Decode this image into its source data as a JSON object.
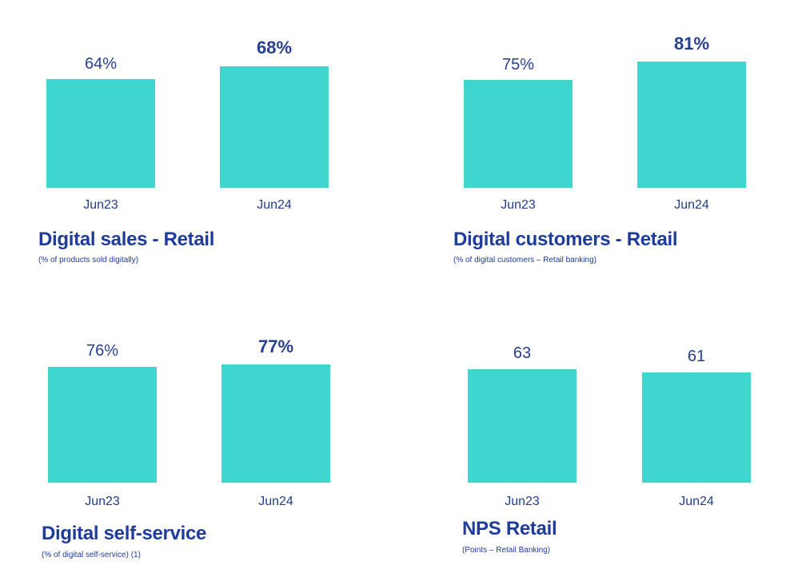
{
  "chart_data": [
    {
      "type": "bar",
      "title": "Digital sales - Retail",
      "subtitle": "(% of products sold digitally)",
      "categories": [
        "Jun23",
        "Jun24"
      ],
      "values": [
        64,
        68
      ],
      "value_labels": [
        "64%",
        "68%"
      ],
      "highlight_last": true,
      "color": "#3fd6cf"
    },
    {
      "type": "bar",
      "title": "Digital customers - Retail",
      "subtitle": "(% of digital customers – Retail banking)",
      "categories": [
        "Jun23",
        "Jun24"
      ],
      "values": [
        75,
        81
      ],
      "value_labels": [
        "75%",
        "81%"
      ],
      "highlight_last": true,
      "color": "#3fd6cf"
    },
    {
      "type": "bar",
      "title": "Digital self-service",
      "subtitle": "(% of digital self-service) (1)",
      "categories": [
        "Jun23",
        "Jun24"
      ],
      "values": [
        76,
        77
      ],
      "value_labels": [
        "76%",
        "77%"
      ],
      "highlight_last": true,
      "color": "#3fd6cf"
    },
    {
      "type": "bar",
      "title": "NPS Retail",
      "subtitle": "(Points – Retail Banking)",
      "categories": [
        "Jun23",
        "Jun24"
      ],
      "values": [
        63,
        61
      ],
      "value_labels": [
        "63",
        "61"
      ],
      "highlight_last": false,
      "color": "#3fd6cf"
    }
  ]
}
